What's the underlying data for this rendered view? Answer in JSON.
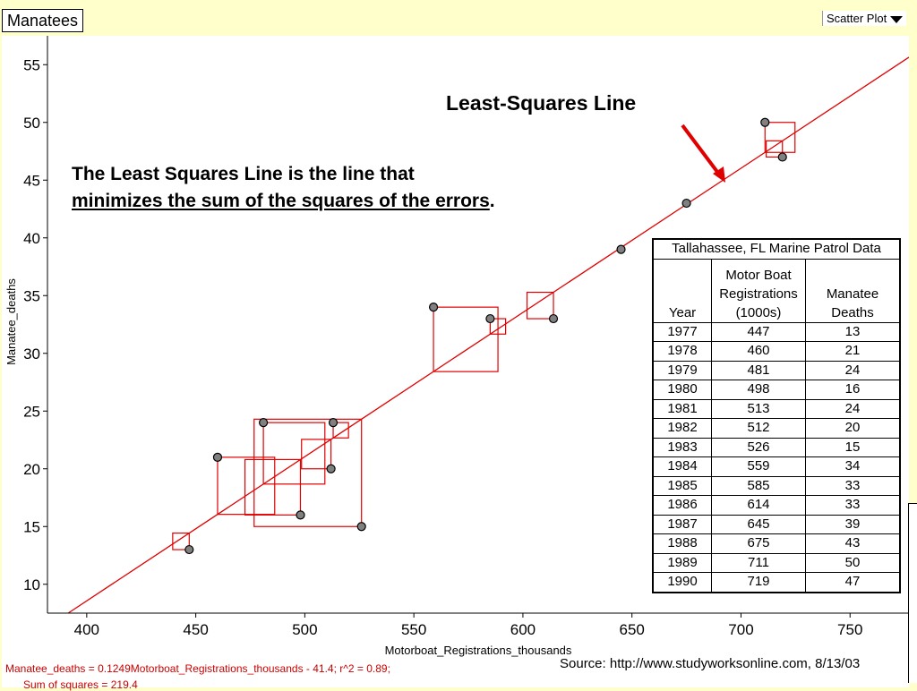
{
  "doc": {
    "title": "Manatees",
    "plot_type": "Scatter Plot"
  },
  "annotation": {
    "least_squares_label": "Least-Squares Line",
    "note_line1": "The Least Squares Line is the line that",
    "note_line2": "minimizes the sum of the squares of the errors",
    "note_period": "."
  },
  "source": "Source: http://www.studyworksonline.com, 8/13/03",
  "equation": "Manatee_deaths = 0.1249Motorboat_Registrations_thousands - 41.4; r^2 = 0.89;",
  "sum_squares": "Sum of squares = 219.4",
  "table": {
    "caption": "Tallahassee, FL Marine Patrol Data",
    "headers": [
      "Year",
      "Motor Boat Registrations (1000s)",
      "Manatee Deaths"
    ],
    "rows": [
      [
        "1977",
        "447",
        "13"
      ],
      [
        "1978",
        "460",
        "21"
      ],
      [
        "1979",
        "481",
        "24"
      ],
      [
        "1980",
        "498",
        "16"
      ],
      [
        "1981",
        "513",
        "24"
      ],
      [
        "1982",
        "512",
        "20"
      ],
      [
        "1983",
        "526",
        "15"
      ],
      [
        "1984",
        "559",
        "34"
      ],
      [
        "1985",
        "585",
        "33"
      ],
      [
        "1986",
        "614",
        "33"
      ],
      [
        "1987",
        "645",
        "39"
      ],
      [
        "1988",
        "675",
        "43"
      ],
      [
        "1989",
        "711",
        "50"
      ],
      [
        "1990",
        "719",
        "47"
      ]
    ]
  },
  "colors": {
    "line": "#e00000",
    "point_fill": "#808080",
    "square": "#e00000"
  },
  "chart_data": {
    "type": "scatter",
    "xlabel": "Motorboat_Registrations_thousands",
    "ylabel": "Manatee_deaths",
    "xlim": [
      382,
      777
    ],
    "ylim": [
      7.5,
      57.5
    ],
    "xticks": [
      400,
      450,
      500,
      550,
      600,
      650,
      700,
      750
    ],
    "yticks": [
      10,
      15,
      20,
      25,
      30,
      35,
      40,
      45,
      50,
      55
    ],
    "x": [
      447,
      460,
      481,
      498,
      513,
      512,
      526,
      559,
      585,
      614,
      645,
      675,
      711,
      719
    ],
    "y": [
      13,
      21,
      24,
      16,
      24,
      20,
      15,
      34,
      33,
      33,
      39,
      43,
      50,
      47
    ],
    "regression": {
      "slope": 0.1249,
      "intercept": -41.4
    },
    "show_residual_squares": true
  }
}
